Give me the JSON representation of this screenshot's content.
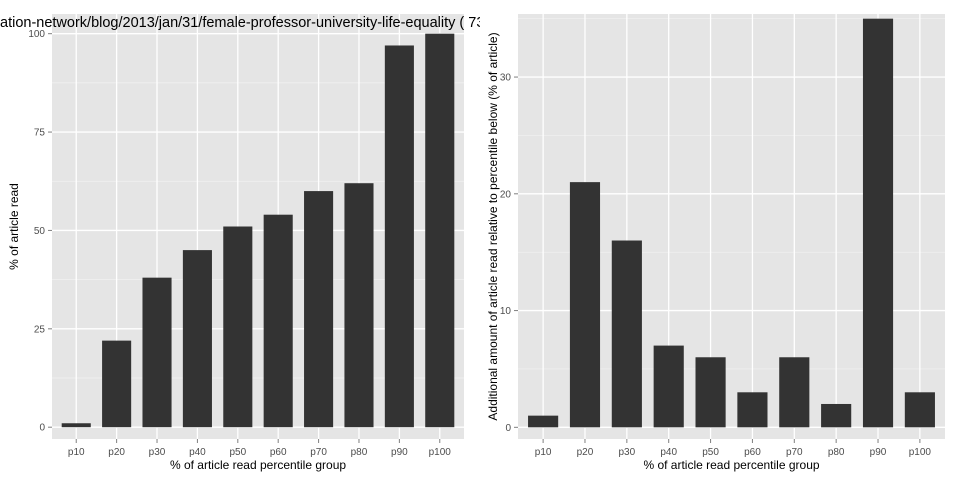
{
  "figure_title": "ation-network/blog/2013/jan/31/female-professor-university-life-equality ( 73",
  "colors": {
    "panel_bg": "#e5e5e5",
    "grid": "#ffffff",
    "bar": "#333333",
    "tick_text": "#4d4d4d"
  },
  "chart_data": [
    {
      "type": "bar",
      "title": "",
      "categories": [
        "p10",
        "p20",
        "p30",
        "p40",
        "p50",
        "p60",
        "p70",
        "p80",
        "p90",
        "p100"
      ],
      "values": [
        1,
        22,
        38,
        45,
        51,
        54,
        60,
        62,
        97,
        100
      ],
      "xlabel": "% of article read percentile group",
      "ylabel": "% of article read",
      "ylim": [
        -3,
        105
      ],
      "yticks": [
        0,
        25,
        50,
        75,
        100
      ],
      "grid": true
    },
    {
      "type": "bar",
      "title": "",
      "categories": [
        "p10",
        "p20",
        "p30",
        "p40",
        "p50",
        "p60",
        "p70",
        "p80",
        "p90",
        "p100"
      ],
      "values": [
        1,
        21,
        16,
        7,
        6,
        3,
        6,
        2,
        35,
        3
      ],
      "xlabel": "% of article read percentile group",
      "ylabel": "Additional amount of article read relative to percentile below (% of article)",
      "ylim": [
        -1,
        35.4
      ],
      "yticks": [
        0,
        10,
        20,
        30
      ],
      "grid": true
    }
  ]
}
